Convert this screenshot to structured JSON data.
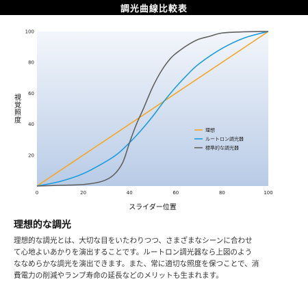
{
  "header": {
    "title": "調光曲線比較表"
  },
  "chart_data": {
    "type": "line",
    "xlabel": "スライダー位置",
    "ylabel": "視覚照度",
    "xlim": [
      0,
      100
    ],
    "ylim": [
      0,
      100
    ],
    "x_ticks": [
      "0",
      "20",
      "40",
      "60",
      "80",
      "100"
    ],
    "y_ticks": [
      "20",
      "40",
      "60",
      "80",
      "100"
    ],
    "grid": false,
    "legend_position": "right",
    "series": [
      {
        "name": "理想",
        "color": "#f5a623",
        "x": [
          0,
          100
        ],
        "y": [
          0,
          100
        ]
      },
      {
        "name": "ルートロン調光器",
        "color": "#1a9be0",
        "x": [
          0,
          10,
          20,
          30,
          35,
          40,
          45,
          50,
          55,
          60,
          65,
          70,
          80,
          90,
          100
        ],
        "y": [
          0,
          3,
          8,
          16,
          21,
          28,
          36,
          45,
          55,
          64,
          72,
          79,
          89,
          96,
          100
        ]
      },
      {
        "name": "標準的な調光器",
        "color": "#606060",
        "x": [
          0,
          10,
          20,
          28,
          33,
          37,
          40,
          43,
          46,
          50,
          54,
          58,
          62,
          66,
          70,
          75,
          80,
          90,
          100
        ],
        "y": [
          0,
          0.5,
          1,
          3,
          7,
          15,
          28,
          40,
          50,
          64,
          75,
          83,
          88,
          92,
          95,
          97,
          99,
          99.8,
          100
        ]
      }
    ]
  },
  "section": {
    "title": "理想的な調光",
    "lines": [
      "理想的な調光とは、大切な目をいたわりつつ、さまざまなシーンに合わせ",
      "て心地よいあかりを演出することです。ルートロン調光器なら上図のよう",
      "ななめらかな調光を演出できます。また、常に適切な照度を保つことで、消",
      "費電力の削減やランプ寿命の延長などのメリットも生まれます。"
    ]
  }
}
